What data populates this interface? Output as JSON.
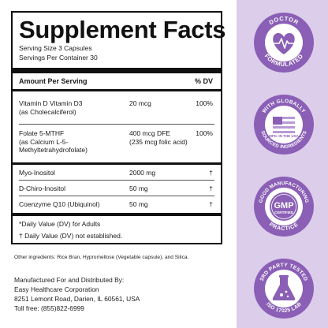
{
  "facts": {
    "title": "Supplement Facts",
    "serving_size": "Serving Size 3 Capsules",
    "servings_per_container": "Servings Per Container 30",
    "header_amount": "Amount Per Serving",
    "header_dv": "% DV",
    "rows": [
      {
        "name_lines": [
          "Vitamin D Vitamin D3",
          "(as Cholecalciferol)"
        ],
        "amount_lines": [
          "20 mcg"
        ],
        "dv": "100%"
      },
      {
        "name_lines": [
          "Folate 5-MTHF",
          "(as Calcium L-5-",
          "Methyltetrahydrofolate)"
        ],
        "amount_lines": [
          "400 mcg DFE",
          "(235 mcg folic acid)"
        ],
        "dv": "100%"
      },
      {
        "name_lines": [
          "Myo-Inositol"
        ],
        "amount_lines": [
          "2000 mg"
        ],
        "dv": "†"
      },
      {
        "name_lines": [
          "D-Chiro-Inositol"
        ],
        "amount_lines": [
          "50 mg"
        ],
        "dv": "†"
      },
      {
        "name_lines": [
          "Coenzyme Q10 (Ubiquinol)"
        ],
        "amount_lines": [
          "50 mg"
        ],
        "dv": "†"
      }
    ],
    "footnote_1": "*Daily Value (DV) for Adults",
    "footnote_2": "† Daily Value (DV) not established."
  },
  "other_ingredients": "Other ingredients: Rice Bran, Hypromellose (Vegetable capsule), and Silica.",
  "manufacturer": {
    "line1": "Manufactured For and Distributed By:",
    "line2": "Easy Healthcare Corporation",
    "line3": "8251 Lemont Road, Darien, IL 60561, USA",
    "line4": "Toll free: (855)822-6999"
  },
  "badges": {
    "doctor": {
      "top_text": "DOCTOR",
      "bottom_text": "FORMULATED",
      "icon": "heart-pulse-icon"
    },
    "usa": {
      "top_text": "WITH GLOBALLY",
      "bottom_text": "SOURCED INGREDIENTS",
      "center_text": "MFD. IN THE USA",
      "icon": "usa-flag-icon"
    },
    "gmp": {
      "top_text": "GOOD MANUFACTURING",
      "bottom_text": "PRACTICE",
      "center_main": "GMP",
      "center_sub": "CERTIFIED",
      "icon": "gmp-seal-icon"
    },
    "lab": {
      "top_text": "3RD PARTY TESTED",
      "bottom_text": "ISO 17025 LAB",
      "icon": "flask-icon"
    }
  },
  "colors": {
    "panel": "#dccdeb",
    "badge_ring": "#8a5fb5",
    "badge_fill": "#ffffff",
    "accent": "#7b4aa8"
  }
}
